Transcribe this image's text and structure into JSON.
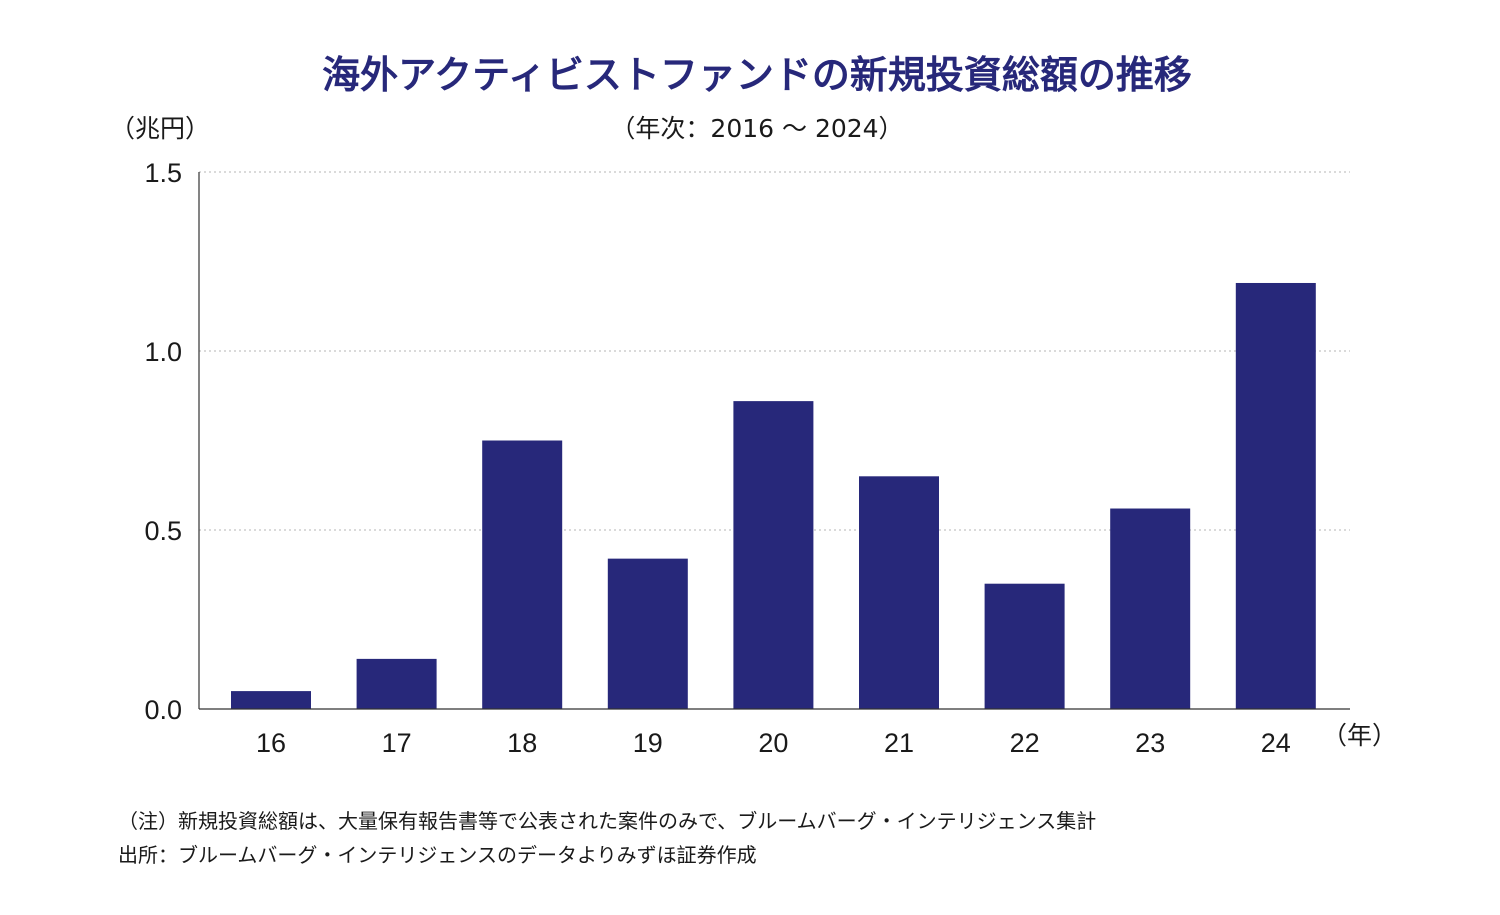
{
  "chart_data": {
    "type": "bar",
    "title": "海外アクティビストファンドの新規投資総額の推移",
    "subtitle": "（年次：2016 ～ 2024）",
    "ylabel": "（兆円）",
    "xlabel": "（年）",
    "categories": [
      "16",
      "17",
      "18",
      "19",
      "20",
      "21",
      "22",
      "23",
      "24"
    ],
    "values": [
      0.05,
      0.14,
      0.75,
      0.42,
      0.86,
      0.65,
      0.35,
      0.56,
      1.19
    ],
    "ylim": [
      0,
      1.5
    ],
    "yticks": [
      "0.0",
      "0.5",
      "1.0",
      "1.5"
    ],
    "grid": true,
    "bar_color": "#27287a"
  },
  "notes": [
    "（注）新規投資総額は、大量保有報告書等で公表された案件のみで、ブルームバーグ・インテリジェンス集計",
    "出所：ブルームバーグ・インテリジェンスのデータよりみずほ証券作成"
  ]
}
